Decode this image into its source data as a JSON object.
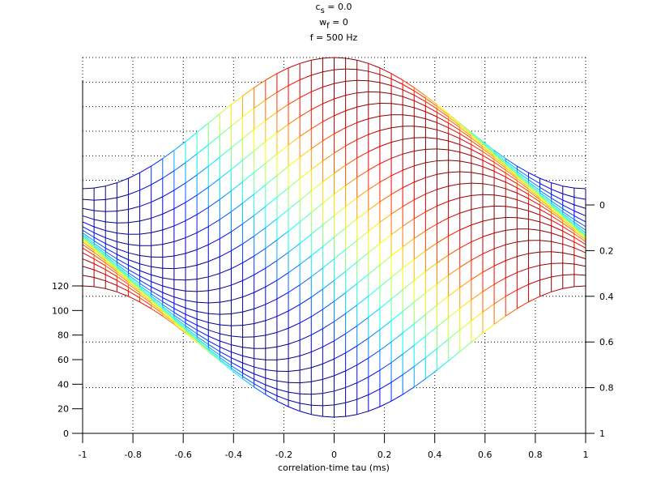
{
  "chart_data": {
    "type": "mesh",
    "title_lines": [
      {
        "main": "c",
        "sub": "s",
        "rest": " = 0.0"
      },
      {
        "main": "w",
        "sub": "f",
        "rest": " = 0"
      },
      {
        "main": "f = 500 Hz",
        "sub": "",
        "rest": ""
      }
    ],
    "xlabel": "correlation-time tau (ms)",
    "ylabel": "",
    "zlabel": "",
    "x_range": [
      -1,
      1
    ],
    "x_points": 45,
    "y_range": [
      0,
      1
    ],
    "y_points": 21,
    "z_range": [
      0,
      120
    ],
    "surface": {
      "description_formula": "z = mean + amplitude * cos(2*pi*f*(tau - y/(2f)))",
      "frequency_hz": 500,
      "z_mean": 66.6,
      "z_amplitude": 53.4
    },
    "x_ticks": [
      "-1",
      "-0.8",
      "-0.6",
      "-0.4",
      "-0.2",
      "0",
      "0.2",
      "0.4",
      "0.6",
      "0.8",
      "1"
    ],
    "x_tick_values": [
      -1,
      -0.8,
      -0.6,
      -0.4,
      -0.2,
      0,
      0.2,
      0.4,
      0.6,
      0.8,
      1
    ],
    "y_ticks": [
      "0",
      "0.2",
      "0.4",
      "0.6",
      "0.8",
      "1"
    ],
    "y_tick_values": [
      0,
      0.2,
      0.4,
      0.6,
      0.8,
      1
    ],
    "z_ticks": [
      "0",
      "20",
      "40",
      "60",
      "80",
      "100",
      "120"
    ],
    "z_tick_values": [
      0,
      20,
      40,
      60,
      80,
      100,
      120
    ],
    "colormap": "jet",
    "grid": true,
    "background": "#ffffff"
  }
}
